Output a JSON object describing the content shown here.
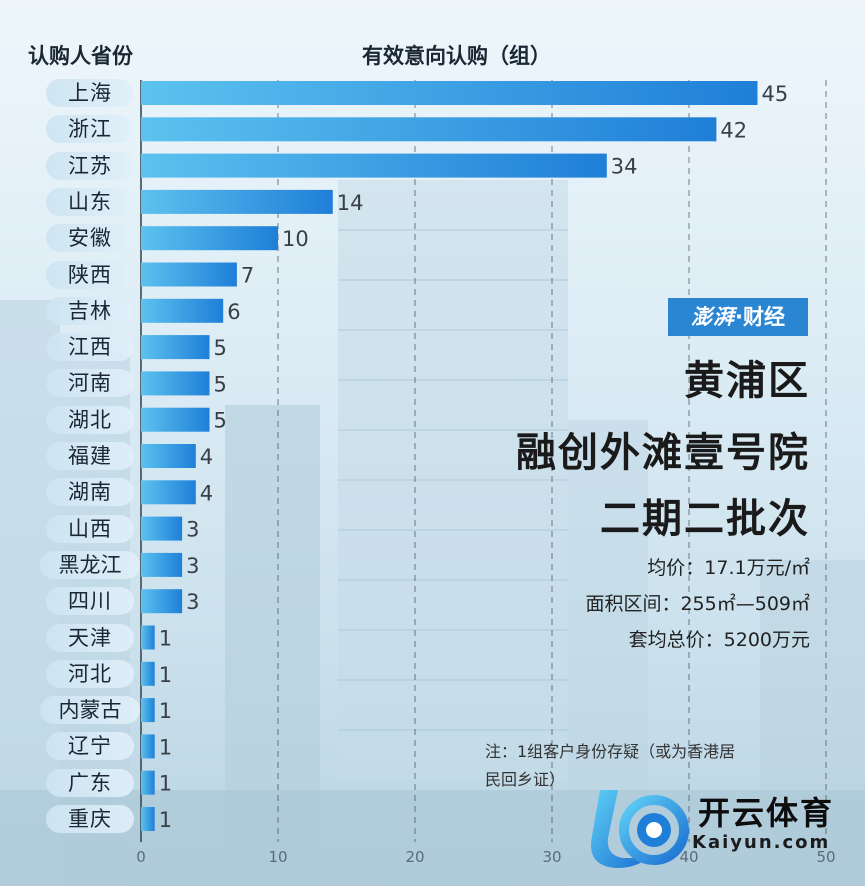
{
  "chart_data": {
    "type": "bar",
    "orientation": "horizontal",
    "xlabel": "有效意向认购（组）",
    "ylabel": "认购人省份",
    "categories": [
      "上海",
      "浙江",
      "江苏",
      "山东",
      "安徽",
      "陕西",
      "吉林",
      "江西",
      "河南",
      "湖北",
      "福建",
      "湖南",
      "山西",
      "黑龙江",
      "四川",
      "天津",
      "河北",
      "内蒙古",
      "辽宁",
      "广东",
      "重庆"
    ],
    "values": [
      45,
      42,
      34,
      14,
      10,
      7,
      6,
      5,
      5,
      5,
      4,
      4,
      3,
      3,
      3,
      1,
      1,
      1,
      1,
      1,
      1
    ],
    "xlim": [
      0,
      50
    ],
    "xticks": [
      "0",
      "10",
      "20",
      "30",
      "40",
      "50"
    ],
    "grid": "vertical dashed",
    "bar_color_start": "#5cc2ef",
    "bar_color_end": "#1f7fd8"
  },
  "brand": {
    "seal": "澎湃",
    "name": "财经"
  },
  "title_lines": [
    "黄浦区",
    "融创外滩壹号院",
    "二期二批次"
  ],
  "info": {
    "avg_price": "均价：17.1万元/㎡",
    "area": "面积区间：255㎡—509㎡",
    "total_price": "套均总价：5200万元"
  },
  "note_lines": [
    "注：1组客户身份存疑（或为香港居",
    "民回乡证）"
  ],
  "watermark": {
    "name": "开云体育",
    "url": "Kaiyun.com"
  }
}
